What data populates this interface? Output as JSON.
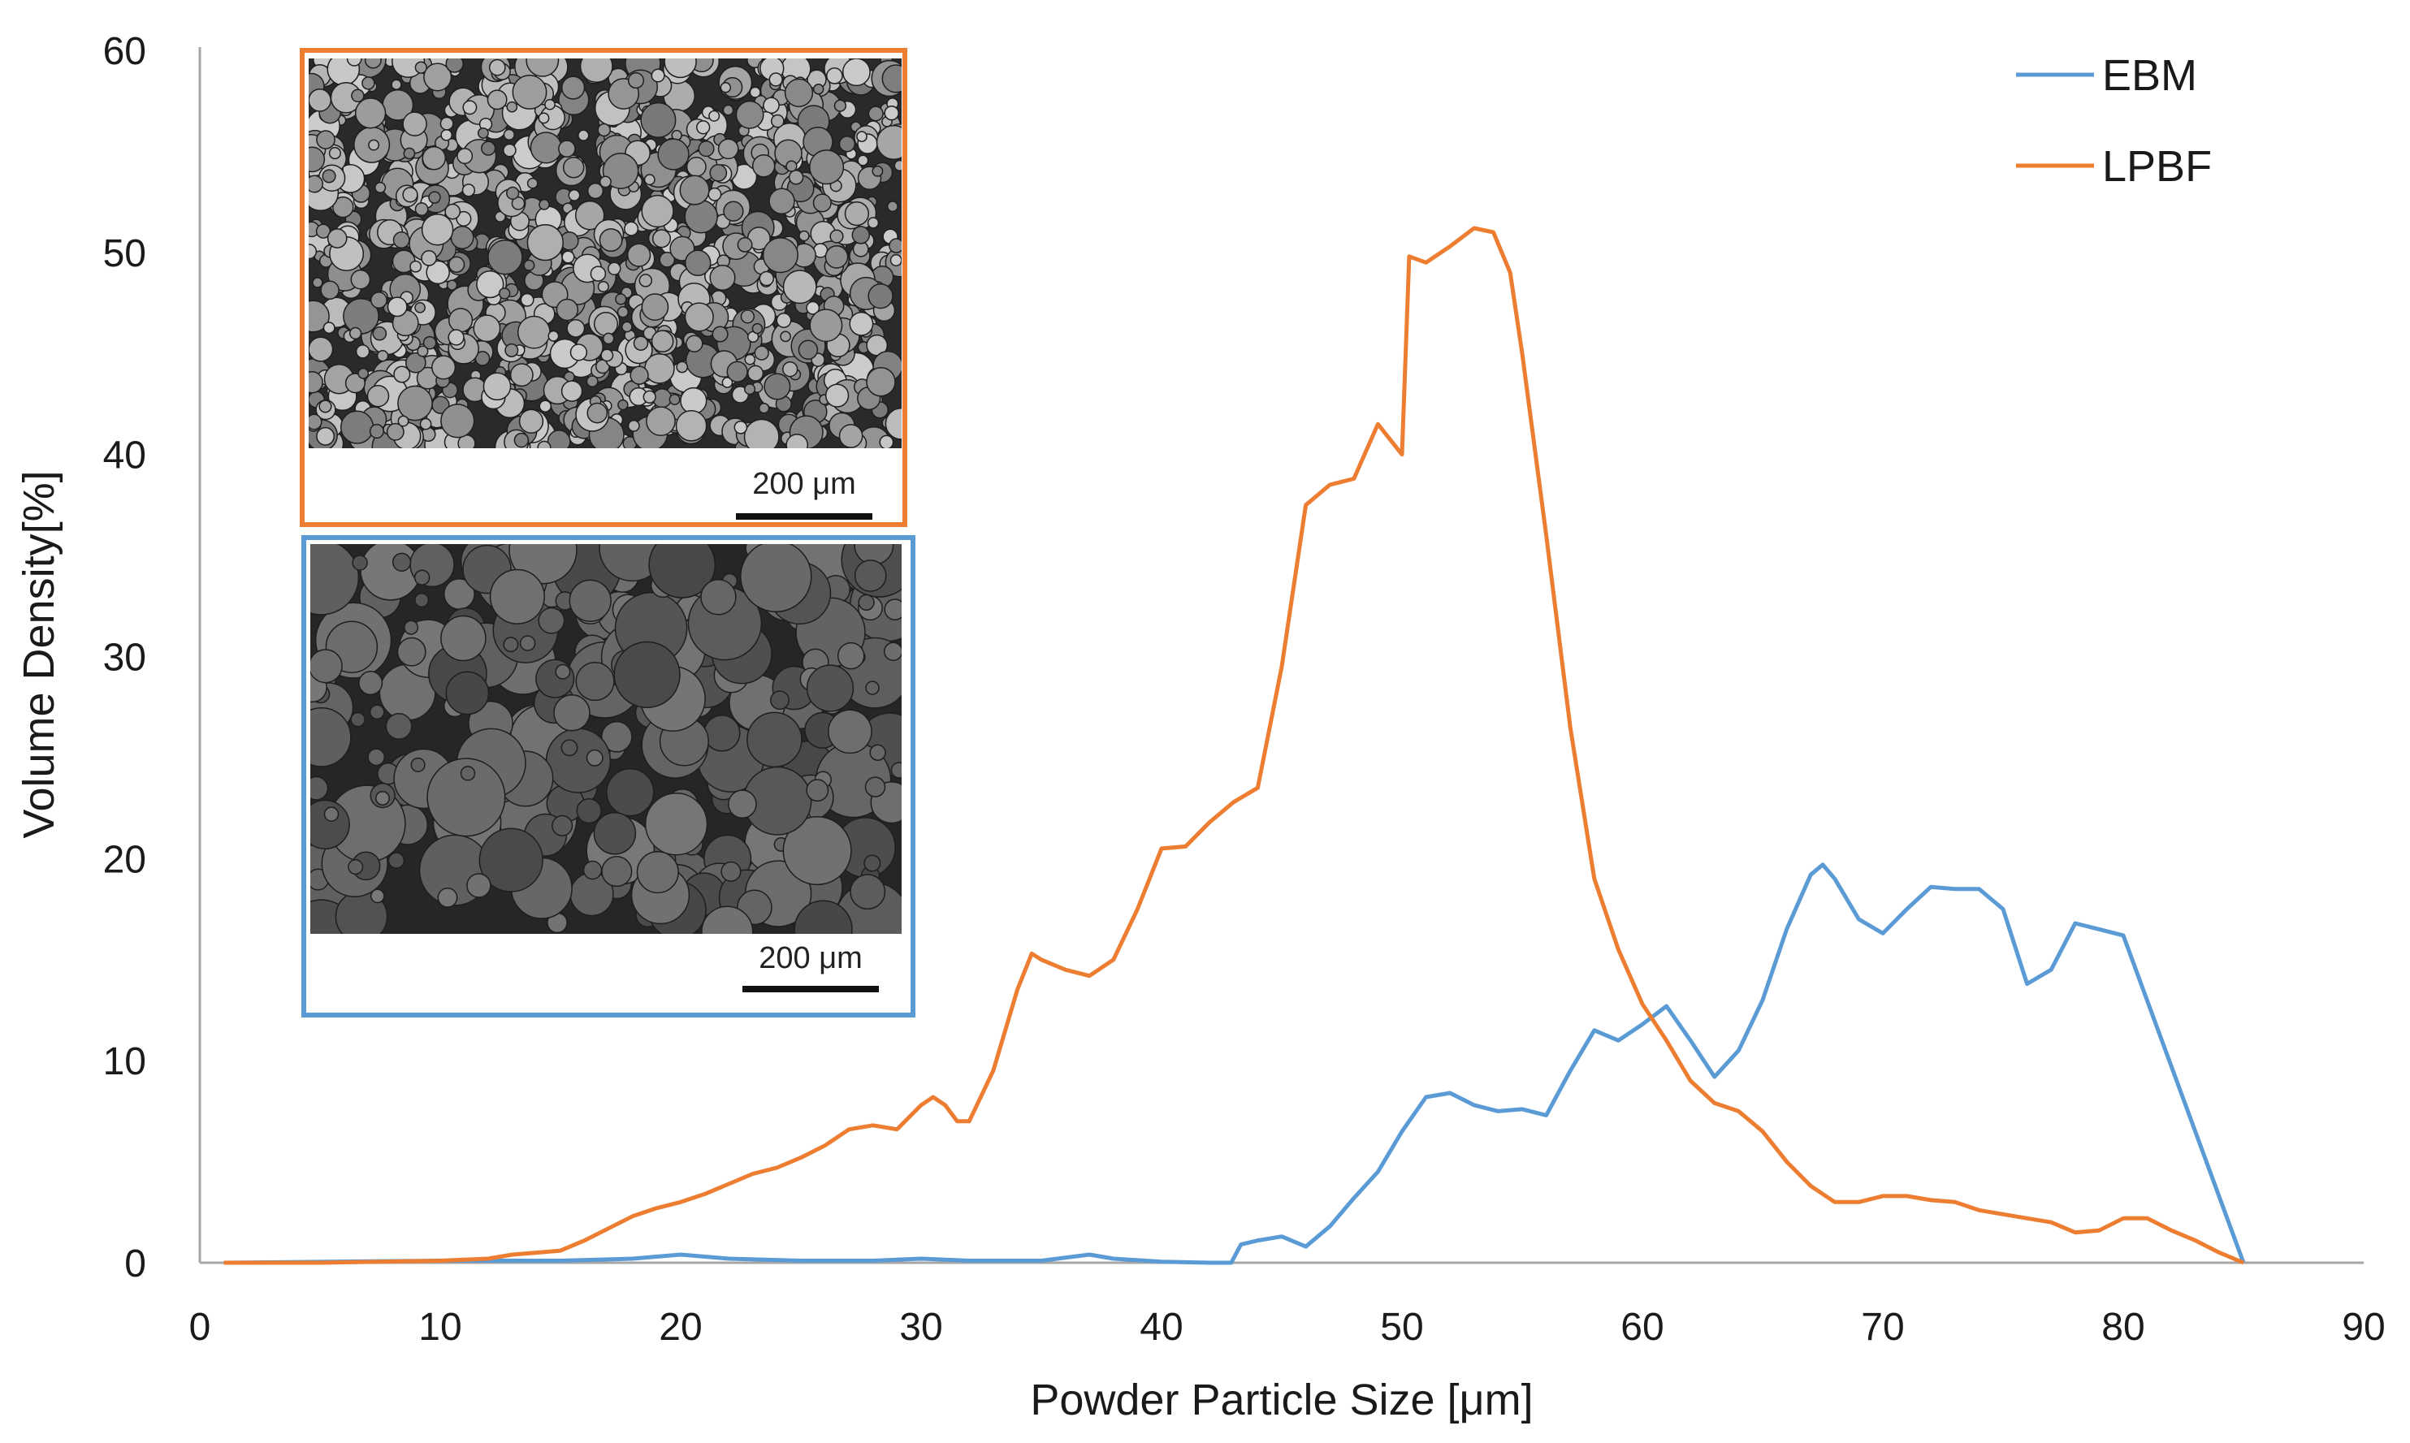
{
  "chart_data": {
    "type": "line",
    "title": "",
    "xlabel": "Powder Particle Size [μm]",
    "ylabel": "Volume Density[%]",
    "xlim": [
      0,
      90
    ],
    "ylim": [
      0,
      60
    ],
    "xticks": [
      0,
      10,
      20,
      30,
      40,
      50,
      60,
      70,
      80,
      90
    ],
    "yticks": [
      0,
      10,
      20,
      30,
      40,
      50,
      60
    ],
    "grid": false,
    "legend_position": "top-right",
    "series": [
      {
        "name": "EBM",
        "color": "#5b9bd5",
        "x": [
          1,
          10,
          15,
          18,
          20,
          22,
          25,
          28,
          30,
          32,
          35,
          37,
          38,
          40,
          42,
          42.9,
          43.3,
          44,
          45,
          46,
          47,
          48,
          49,
          50,
          51,
          52,
          53,
          54,
          55,
          56,
          57,
          58,
          59,
          60,
          61,
          62,
          63,
          64,
          65,
          66,
          67,
          67.5,
          68,
          69,
          70,
          71,
          72,
          73,
          74,
          75,
          76,
          77,
          78,
          79,
          80,
          85
        ],
        "y": [
          0,
          0.1,
          0.1,
          0.2,
          0.4,
          0.2,
          0.1,
          0.1,
          0.2,
          0.1,
          0.1,
          0.4,
          0.2,
          0.05,
          0,
          0,
          0.9,
          1.1,
          1.3,
          0.8,
          1.8,
          3.2,
          4.5,
          6.5,
          8.2,
          8.4,
          7.8,
          7.5,
          7.6,
          7.3,
          9.5,
          11.5,
          11.0,
          11.8,
          12.7,
          11.0,
          9.2,
          10.5,
          13.0,
          16.5,
          19.2,
          19.7,
          19.0,
          17.0,
          16.3,
          17.5,
          18.6,
          18.5,
          18.5,
          17.5,
          13.8,
          14.5,
          16.8,
          16.5,
          16.2,
          0
        ]
      },
      {
        "name": "LPBF",
        "color": "#ed7d31",
        "x": [
          1,
          5,
          10,
          12,
          13,
          14,
          15,
          16,
          17,
          18,
          19,
          20,
          21,
          22,
          23,
          24,
          25,
          26,
          27,
          28,
          29,
          30,
          30.5,
          31,
          31.5,
          32,
          33,
          34,
          34.6,
          35,
          36,
          37,
          38,
          39,
          40,
          41,
          42,
          43,
          44,
          45,
          46,
          47,
          48,
          49,
          50,
          50.3,
          51,
          52,
          53,
          53.8,
          54.5,
          55,
          56,
          57,
          58,
          59,
          60,
          61,
          62,
          63,
          64,
          65,
          66,
          67,
          68,
          69,
          70,
          71,
          72,
          73,
          74,
          75,
          76,
          77,
          78,
          79,
          80,
          81,
          82,
          83,
          84,
          85
        ],
        "y": [
          0,
          0,
          0.1,
          0.2,
          0.4,
          0.5,
          0.6,
          1.1,
          1.7,
          2.3,
          2.7,
          3.0,
          3.4,
          3.9,
          4.4,
          4.7,
          5.2,
          5.8,
          6.6,
          6.8,
          6.6,
          7.8,
          8.2,
          7.8,
          7.0,
          7.0,
          9.5,
          13.5,
          15.3,
          15.0,
          14.5,
          14.2,
          15.0,
          17.5,
          20.5,
          20.6,
          21.8,
          22.8,
          23.5,
          29.5,
          37.5,
          38.5,
          38.8,
          41.5,
          40.0,
          49.8,
          49.5,
          50.3,
          51.2,
          51.0,
          49.0,
          45.0,
          36.0,
          26.5,
          19.0,
          15.5,
          12.8,
          11.0,
          9.0,
          7.9,
          7.5,
          6.5,
          5.0,
          3.8,
          3.0,
          3.0,
          3.3,
          3.3,
          3.1,
          3.0,
          2.6,
          2.4,
          2.2,
          2.0,
          1.5,
          1.6,
          2.2,
          2.2,
          1.6,
          1.1,
          0.5,
          0
        ]
      }
    ],
    "insets": [
      {
        "name": "LPBF powder micrograph",
        "border_color": "#ed7d31",
        "scale_bar_label": "200 μm"
      },
      {
        "name": "EBM powder micrograph",
        "border_color": "#5b9bd5",
        "scale_bar_label": "200 μm"
      }
    ]
  }
}
